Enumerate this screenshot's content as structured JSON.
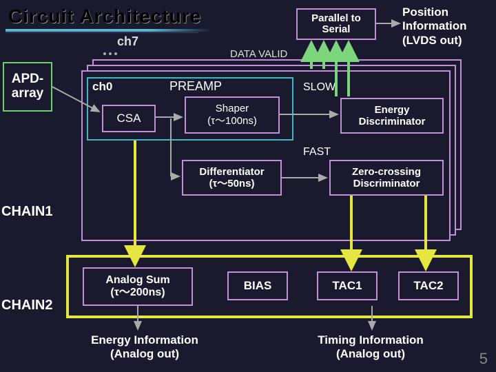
{
  "title": "Circuit Architecture",
  "page_number": "5",
  "colors": {
    "bg": "#1a1a2e",
    "title_underline": "#5bb5d9",
    "apd_border": "#6fcf6f",
    "block_border": "#c28fd9",
    "preamp_border": "#42b5c4",
    "chain2_border": "#e6e642",
    "arrow_gray": "#aaaaaa",
    "arrow_green": "#7bd67b",
    "arrow_yellow": "#e6e642",
    "text": "#ffffff"
  },
  "labels": {
    "apd_array": "APD-\narray",
    "ch7": "ch7",
    "ch0": "ch0",
    "preamp": "PREAMP",
    "csa": "CSA",
    "shaper": "Shaper\n(τ〜100ns)",
    "parallel_serial": "Parallel to\nSerial",
    "position_info": "Position\nInformation\n(LVDS out)",
    "data_valid": "DATA VALID",
    "slow": "SLOW",
    "fast": "FAST",
    "energy_disc": "Energy\nDiscriminator",
    "differentiator": "Differentiator\n(τ〜50ns)",
    "zero_crossing": "Zero-crossing\nDiscriminator",
    "chain1": "CHAIN1",
    "chain2": "CHAIN2",
    "analog_sum": "Analog Sum\n(τ〜200ns)",
    "bias": "BIAS",
    "tac1": "TAC1",
    "tac2": "TAC2",
    "energy_info": "Energy Information\n(Analog out)",
    "timing_info": "Timing Information\n(Analog out)"
  }
}
